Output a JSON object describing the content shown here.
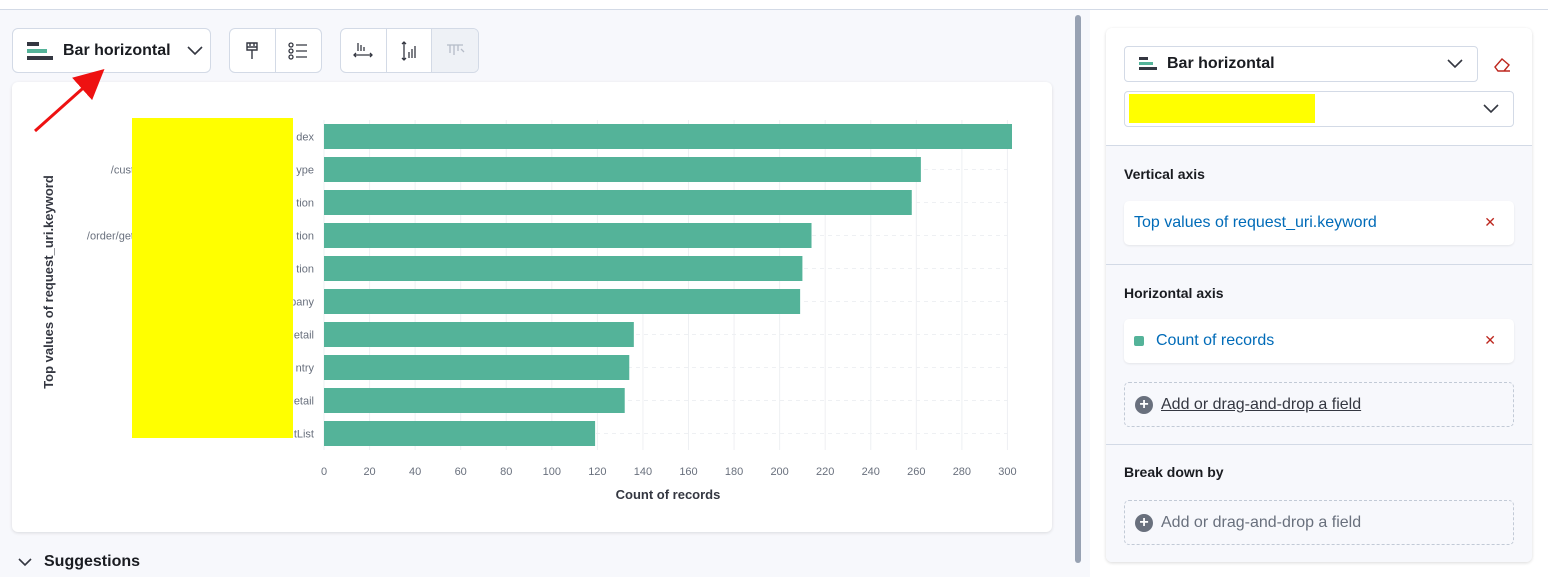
{
  "toolbar": {
    "chart_type_label": "Bar horizontal",
    "icons": [
      "paintbrush-icon",
      "legend-list-icon",
      "horizontal-axis-icon",
      "vertical-axis-icon",
      "filter-axis-icon"
    ]
  },
  "chart_data": {
    "type": "bar",
    "orientation": "horizontal",
    "categories": [
      "dex",
      "ype",
      "tion",
      "tion",
      "tion",
      "pany",
      "etail",
      "ntry",
      "etail",
      "tList"
    ],
    "category_label_prefixes": [
      "",
      "/cust",
      "",
      "/order/get",
      "",
      "",
      "",
      "",
      "",
      ""
    ],
    "values": [
      302,
      262,
      258,
      214,
      210,
      209,
      136,
      134,
      132,
      119
    ],
    "xlabel": "Count of records",
    "ylabel": "Top values of request_uri.keyword",
    "xlim": [
      0,
      302
    ],
    "xticks": [
      "0",
      "20",
      "40",
      "60",
      "80",
      "100",
      "120",
      "140",
      "160",
      "180",
      "200",
      "220",
      "240",
      "260",
      "280",
      "300"
    ],
    "bar_color": "#54b399",
    "grid": true
  },
  "suggestions": {
    "label": "Suggestions"
  },
  "side_panel": {
    "chart_type_label": "Bar horizontal",
    "vertical_axis": {
      "title": "Vertical axis",
      "dimension": "Top values of request_uri.keyword"
    },
    "horizontal_axis": {
      "title": "Horizontal axis",
      "dimension": "Count of records",
      "add_field": "Add or drag-and-drop a field"
    },
    "break_down": {
      "title": "Break down by",
      "add_field": "Add or drag-and-drop a field"
    }
  },
  "colors": {
    "accent": "#006bb8",
    "bar": "#54b399",
    "annotation_arrow": "#ee1111",
    "redaction": "#ffff00"
  }
}
